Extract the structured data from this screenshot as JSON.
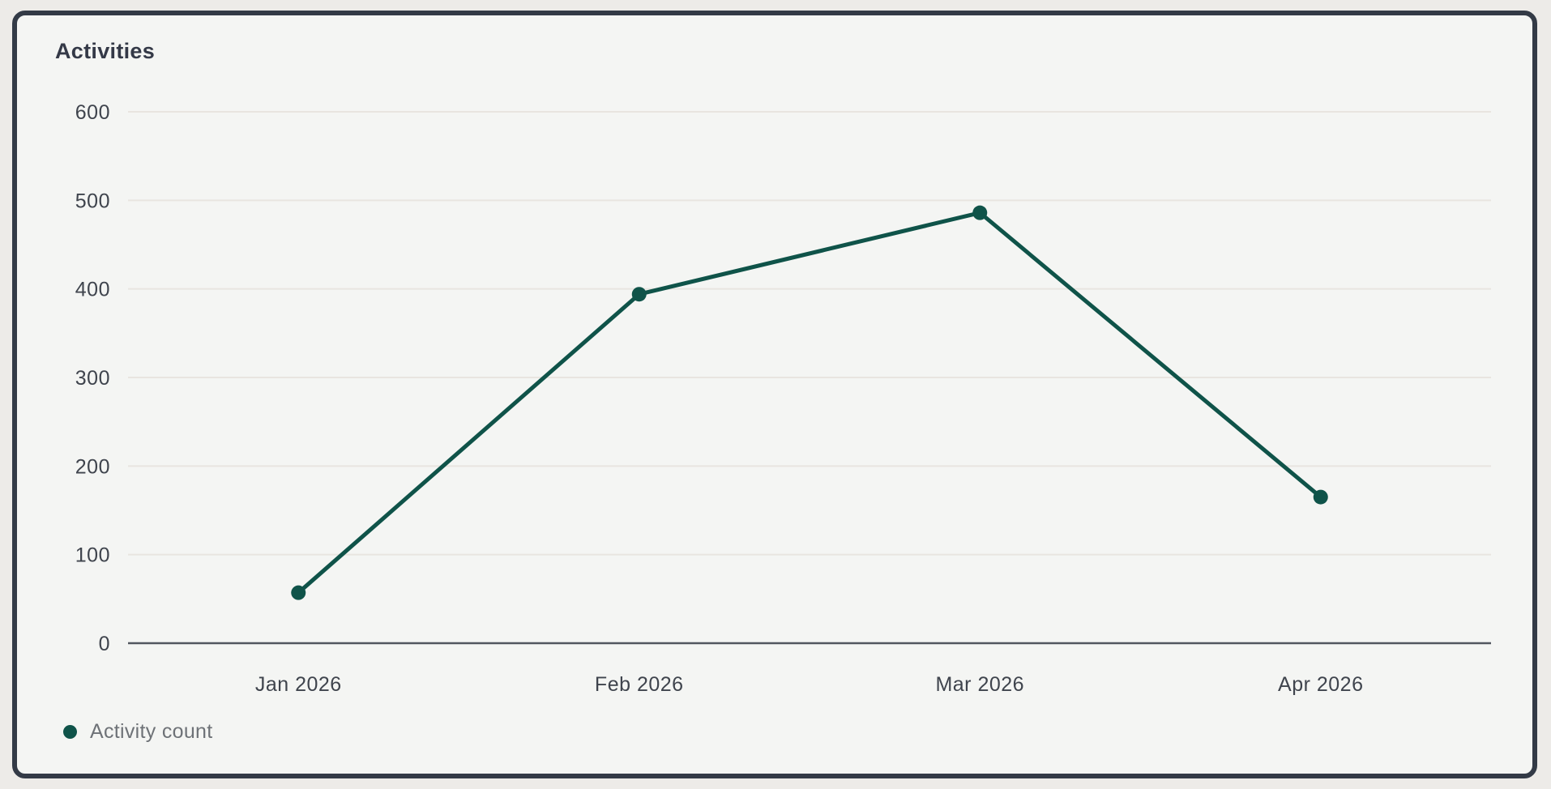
{
  "chart_data": {
    "type": "line",
    "title": "Activities",
    "categories": [
      "Jan 2026",
      "Feb 2026",
      "Mar 2026",
      "Apr 2026"
    ],
    "series": [
      {
        "name": "Activity count",
        "values": [
          57,
          394,
          486,
          165
        ]
      }
    ],
    "xlabel": "",
    "ylabel": "",
    "ylim": [
      0,
      600
    ],
    "yticks": [
      0,
      100,
      200,
      300,
      400,
      500,
      600
    ],
    "grid": true,
    "legend_position": "bottom-left"
  },
  "colors": {
    "accent": "#0f5349",
    "page_bg": "#edebe8",
    "card_bg": "#f4f5f3",
    "card_border": "#333a46",
    "grid_line": "#e8e5e0",
    "axis_line": "#51565f",
    "tick_text": "#3f444d",
    "legend_text": "#6e7277"
  }
}
